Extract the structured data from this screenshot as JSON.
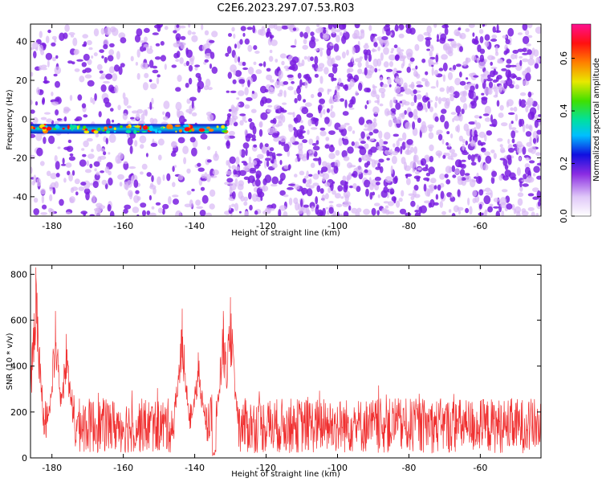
{
  "title": "C2E6.2023.297.07.53.R03",
  "colors": {
    "snr_line": "#f03030",
    "spectrogram_light": "#d9b8f5",
    "spectrogram_dark": "#7a1ee0",
    "signal_band": "#1010d0"
  },
  "chart_data": [
    {
      "type": "heatmap",
      "title": "C2E6.2023.297.07.53.R03",
      "xlabel": "Height of straight line (km)",
      "ylabel": "Frequency (Hz)",
      "xlim": [
        -186,
        -43
      ],
      "ylim": [
        -50,
        49
      ],
      "xticks": [
        -180,
        -160,
        -140,
        -120,
        -100,
        -80,
        -60
      ],
      "yticks": [
        -40,
        -20,
        0,
        20,
        40
      ],
      "colorbar": {
        "label": "Normalized spectral amplitude",
        "range": [
          0.0,
          0.73
        ],
        "ticks": [
          0.0,
          0.2,
          0.4,
          0.6
        ],
        "colormap": "white-purple-blue-cyan-green-yellow-red-magenta"
      },
      "signal_band": {
        "frequency_hz": -5,
        "x_start": -186,
        "x_end": -131,
        "peak_amplitude": 0.7
      },
      "gaps": [
        [
          -147,
          -146
        ],
        [
          -134,
          -131
        ]
      ],
      "grid": false
    },
    {
      "type": "line",
      "xlabel": "Height of straight line (km)",
      "ylabel": "SNR (10 * v/v)",
      "xlim": [
        -186,
        -43
      ],
      "ylim": [
        0,
        840
      ],
      "xticks": [
        -180,
        -160,
        -140,
        -120,
        -100,
        -80,
        -60
      ],
      "yticks": [
        0,
        200,
        400,
        600,
        800
      ],
      "noise_level": {
        "baseline": 130,
        "typical_max": 260,
        "typical_min": 20
      },
      "peaks": [
        {
          "x": -184.5,
          "y": 830
        },
        {
          "x": -179,
          "y": 640
        },
        {
          "x": -176,
          "y": 540
        },
        {
          "x": -143.5,
          "y": 650
        },
        {
          "x": -139,
          "y": 460
        },
        {
          "x": -132,
          "y": 640
        },
        {
          "x": -130,
          "y": 700
        }
      ],
      "grid": false
    }
  ]
}
